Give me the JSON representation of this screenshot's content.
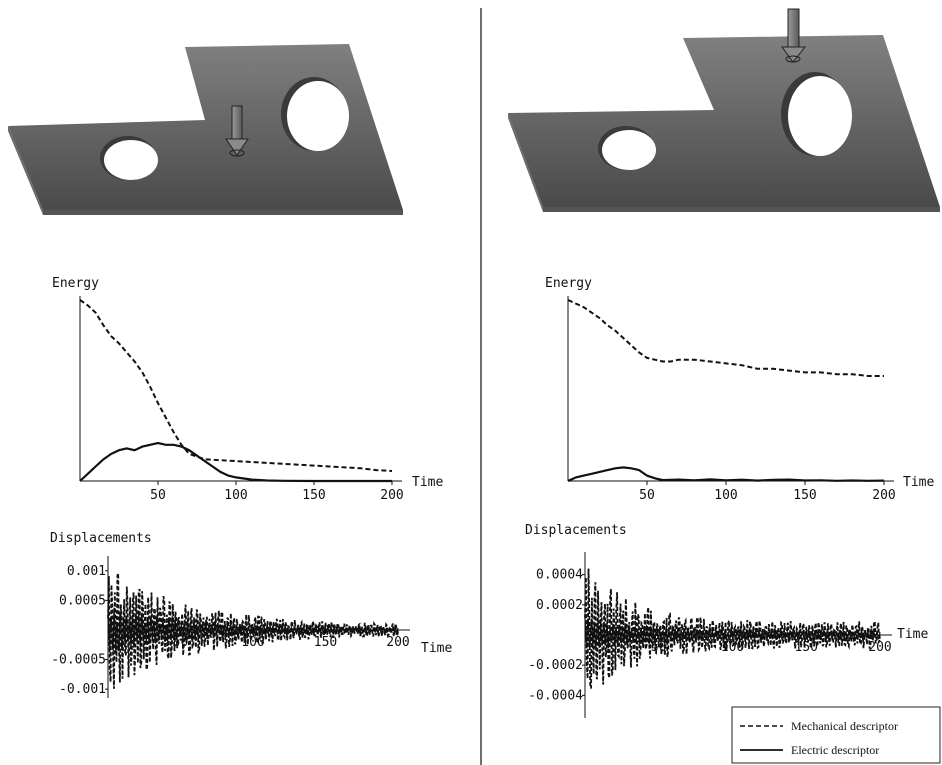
{
  "figure": {
    "colors": {
      "plate_top": "#808080",
      "plate_bottom": "#4a4a4a",
      "plate_side": "#5e5e5e",
      "hole": "#ffffff",
      "arrow": "#777777",
      "ink": "#111111"
    },
    "legend": {
      "mechanical": "Mechanical descriptor",
      "electric": "Electric descriptor"
    }
  },
  "chart_data": [
    {
      "id": "left-energy",
      "type": "line",
      "ylabel": "Energy",
      "xlabel": "Time",
      "xlim": [
        0,
        200
      ],
      "ylim": [
        0,
        1
      ],
      "xticks": [
        "50",
        "100",
        "150",
        "200"
      ],
      "grid": false,
      "series": [
        {
          "name": "Mechanical descriptor",
          "style": "dashed",
          "points": [
            [
              0,
              1
            ],
            [
              5,
              0.97
            ],
            [
              10,
              0.93
            ],
            [
              15,
              0.86
            ],
            [
              20,
              0.8
            ],
            [
              25,
              0.76
            ],
            [
              30,
              0.71
            ],
            [
              35,
              0.66
            ],
            [
              40,
              0.6
            ],
            [
              45,
              0.52
            ],
            [
              50,
              0.43
            ],
            [
              55,
              0.35
            ],
            [
              60,
              0.27
            ],
            [
              65,
              0.2
            ],
            [
              70,
              0.15
            ],
            [
              80,
              0.12
            ],
            [
              90,
              0.115
            ],
            [
              100,
              0.11
            ],
            [
              110,
              0.105
            ],
            [
              120,
              0.1
            ],
            [
              130,
              0.095
            ],
            [
              140,
              0.09
            ],
            [
              150,
              0.085
            ],
            [
              160,
              0.08
            ],
            [
              170,
              0.075
            ],
            [
              180,
              0.07
            ],
            [
              190,
              0.06
            ],
            [
              200,
              0.055
            ]
          ]
        },
        {
          "name": "Electric descriptor",
          "style": "solid",
          "points": [
            [
              0,
              0
            ],
            [
              5,
              0.04
            ],
            [
              10,
              0.08
            ],
            [
              15,
              0.12
            ],
            [
              20,
              0.15
            ],
            [
              25,
              0.17
            ],
            [
              30,
              0.18
            ],
            [
              35,
              0.17
            ],
            [
              40,
              0.19
            ],
            [
              45,
              0.2
            ],
            [
              50,
              0.21
            ],
            [
              55,
              0.2
            ],
            [
              60,
              0.2
            ],
            [
              65,
              0.19
            ],
            [
              70,
              0.17
            ],
            [
              75,
              0.14
            ],
            [
              80,
              0.11
            ],
            [
              85,
              0.08
            ],
            [
              90,
              0.05
            ],
            [
              95,
              0.03
            ],
            [
              100,
              0.02
            ],
            [
              110,
              0.008
            ],
            [
              120,
              0.003
            ],
            [
              130,
              0.001
            ],
            [
              150,
              0
            ],
            [
              200,
              0
            ]
          ]
        }
      ]
    },
    {
      "id": "right-energy",
      "type": "line",
      "ylabel": "Energy",
      "xlabel": "Time",
      "xlim": [
        0,
        200
      ],
      "ylim": [
        0,
        1
      ],
      "xticks": [
        "50",
        "100",
        "150",
        "200"
      ],
      "grid": false,
      "series": [
        {
          "name": "Mechanical descriptor",
          "style": "dashed",
          "points": [
            [
              0,
              1
            ],
            [
              5,
              0.98
            ],
            [
              10,
              0.96
            ],
            [
              15,
              0.93
            ],
            [
              20,
              0.9
            ],
            [
              25,
              0.86
            ],
            [
              30,
              0.83
            ],
            [
              35,
              0.79
            ],
            [
              40,
              0.75
            ],
            [
              45,
              0.71
            ],
            [
              50,
              0.68
            ],
            [
              55,
              0.67
            ],
            [
              60,
              0.66
            ],
            [
              65,
              0.66
            ],
            [
              70,
              0.67
            ],
            [
              80,
              0.67
            ],
            [
              90,
              0.66
            ],
            [
              100,
              0.65
            ],
            [
              110,
              0.64
            ],
            [
              120,
              0.62
            ],
            [
              130,
              0.62
            ],
            [
              140,
              0.61
            ],
            [
              150,
              0.6
            ],
            [
              160,
              0.6
            ],
            [
              170,
              0.59
            ],
            [
              180,
              0.59
            ],
            [
              190,
              0.58
            ],
            [
              200,
              0.58
            ]
          ]
        },
        {
          "name": "Electric descriptor",
          "style": "solid",
          "points": [
            [
              0,
              0
            ],
            [
              5,
              0.02
            ],
            [
              10,
              0.03
            ],
            [
              15,
              0.04
            ],
            [
              20,
              0.05
            ],
            [
              25,
              0.06
            ],
            [
              30,
              0.07
            ],
            [
              35,
              0.075
            ],
            [
              40,
              0.07
            ],
            [
              45,
              0.06
            ],
            [
              50,
              0.03
            ],
            [
              55,
              0.015
            ],
            [
              60,
              0.005
            ],
            [
              70,
              0.008
            ],
            [
              80,
              0.004
            ],
            [
              90,
              0.009
            ],
            [
              100,
              0.004
            ],
            [
              110,
              0.007
            ],
            [
              120,
              0.002
            ],
            [
              130,
              0.006
            ],
            [
              140,
              0.008
            ],
            [
              150,
              0.003
            ],
            [
              160,
              0.004
            ],
            [
              170,
              0.001
            ],
            [
              180,
              0.003
            ],
            [
              190,
              0.001
            ],
            [
              200,
              0.002
            ]
          ]
        }
      ]
    },
    {
      "id": "left-displacements",
      "type": "line",
      "ylabel": "Displacements",
      "xlabel": "Time",
      "xlim": [
        0,
        200
      ],
      "ylim": [
        -0.00115,
        0.00125
      ],
      "xticks": [
        "50",
        "100",
        "150",
        "200"
      ],
      "yticks": [
        {
          "value": 0.001,
          "label": "0.001"
        },
        {
          "value": 0.0005,
          "label": "0.0005"
        },
        {
          "value": -0.0005,
          "label": "-0.0005"
        },
        {
          "value": -0.001,
          "label": "-0.001"
        }
      ],
      "grid": false,
      "series": [
        {
          "name": "Mechanical descriptor",
          "style": "dashed",
          "envelope": {
            "start_amplitude": 0.0011,
            "end_amplitude": 8e-05,
            "decay_time": 55,
            "cycles": 95
          }
        },
        {
          "name": "Electric descriptor",
          "style": "solid",
          "envelope": {
            "start_amplitude": 0.0004,
            "end_amplitude": 2e-05,
            "decay_time": 65,
            "cycles": 95
          }
        }
      ]
    },
    {
      "id": "right-displacements",
      "type": "line",
      "ylabel": "Displacements",
      "xlabel": "Time",
      "xlim": [
        0,
        200
      ],
      "ylim": [
        -0.00055,
        0.00055
      ],
      "xticks": [
        "50",
        "100",
        "150",
        "200"
      ],
      "yticks": [
        {
          "value": 0.0004,
          "label": "0.0004"
        },
        {
          "value": 0.0002,
          "label": "0.0002"
        },
        {
          "value": -0.0002,
          "label": "-0.0002"
        },
        {
          "value": -0.0004,
          "label": "-0.0004"
        }
      ],
      "grid": false,
      "series": [
        {
          "name": "Mechanical descriptor",
          "style": "dashed",
          "envelope": {
            "start_amplitude": 0.0005,
            "end_amplitude": 9e-05,
            "decay_time": 30,
            "cycles": 95
          }
        },
        {
          "name": "Electric descriptor",
          "style": "solid",
          "envelope": {
            "start_amplitude": 0.00012,
            "end_amplitude": 3e-05,
            "decay_time": 40,
            "cycles": 95
          }
        }
      ]
    }
  ]
}
